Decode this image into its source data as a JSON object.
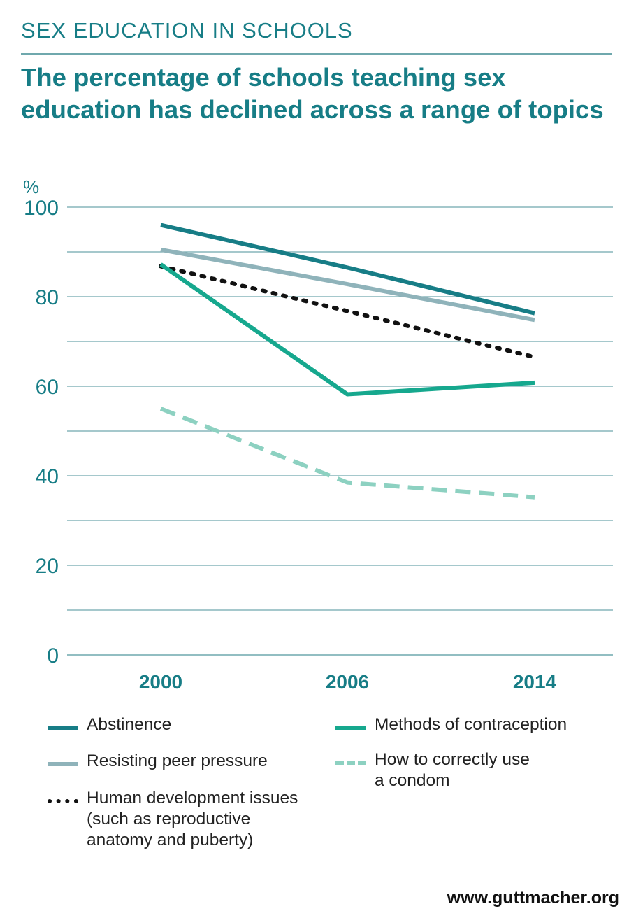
{
  "kicker": "SEX EDUCATION IN SCHOOLS",
  "headline": "The percentage of schools teaching sex education has declined across a range of topics",
  "footer": "www.guttmacher.org",
  "colors": {
    "teal_dark": "#177d86",
    "grey_teal": "#8fb3ba",
    "green": "#16a88e",
    "light_green": "#8dd1c1",
    "black": "#111111",
    "grid": "#6fa8ad"
  },
  "chart_data": {
    "type": "line",
    "ylabel": "%",
    "ylim": [
      0,
      100
    ],
    "yticks": [
      0,
      20,
      40,
      60,
      80,
      100
    ],
    "categories": [
      "2000",
      "2006",
      "2014"
    ],
    "series": [
      {
        "name": "Abstinence",
        "values": [
          96,
          86.5,
          76.3
        ],
        "color": "#177d86",
        "style": "solid"
      },
      {
        "name": "Resisting peer pressure",
        "values": [
          90.5,
          82.8,
          74.8
        ],
        "color": "#8fb3ba",
        "style": "solid"
      },
      {
        "name": "Human development issues (such as reproductive anatomy and puberty)",
        "values": [
          86.8,
          76.8,
          66.5
        ],
        "color": "#111111",
        "style": "dotted"
      },
      {
        "name": "Methods of contraception",
        "values": [
          87.2,
          58.2,
          60.8
        ],
        "color": "#16a88e",
        "style": "solid"
      },
      {
        "name": "How to correctly use a condom",
        "values": [
          55,
          38.5,
          35.2
        ],
        "color": "#8dd1c1",
        "style": "dashed"
      }
    ]
  },
  "legend": [
    {
      "lines": [
        "Abstinence"
      ],
      "series": 0
    },
    {
      "lines": [
        "Methods of contraception"
      ],
      "series": 3
    },
    {
      "lines": [
        "Resisting peer pressure"
      ],
      "series": 1
    },
    {
      "lines": [
        "How to correctly use",
        "a condom"
      ],
      "series": 4
    },
    {
      "lines": [
        "Human development issues",
        "(such as reproductive",
        "anatomy and puberty)"
      ],
      "series": 2
    }
  ]
}
